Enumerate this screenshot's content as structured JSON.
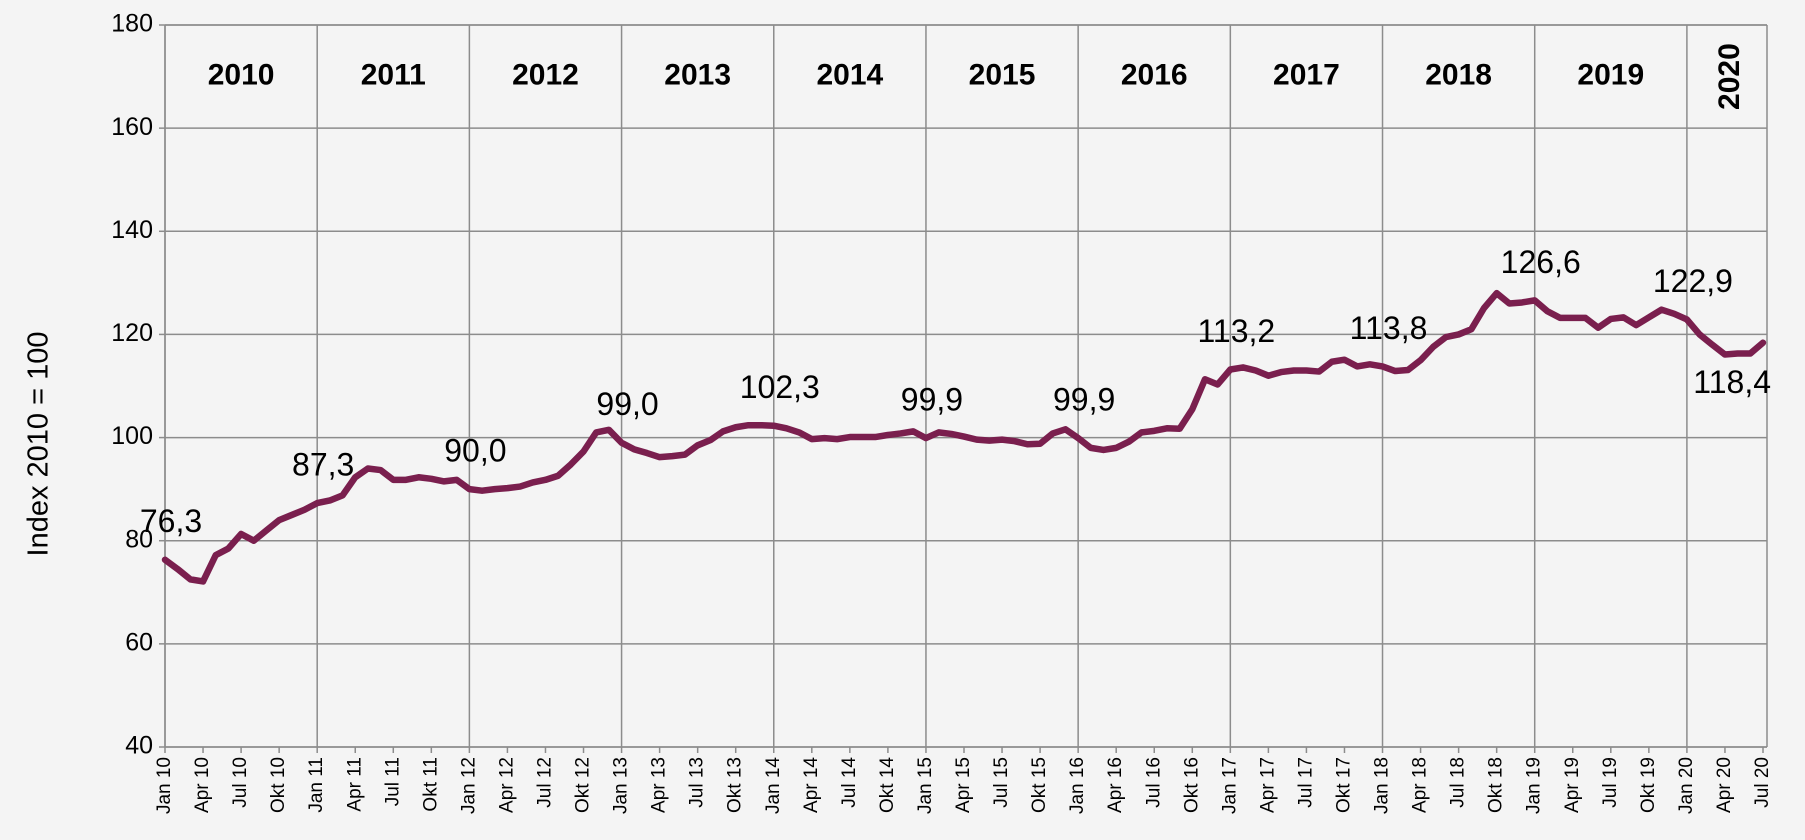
{
  "chart_data": {
    "type": "line",
    "y_label": "Index 2010 = 100",
    "year_labels": [
      "2010",
      "2011",
      "2012",
      "2013",
      "2014",
      "2015",
      "2016",
      "2017",
      "2018",
      "2019",
      "2020"
    ],
    "categories": [
      "Jan 10",
      null,
      null,
      "Apr 10",
      null,
      null,
      "Jul 10",
      null,
      null,
      "Okt 10",
      null,
      null,
      "Jan 11",
      null,
      null,
      "Apr 11",
      null,
      null,
      "Jul 11",
      null,
      null,
      "Okt 11",
      null,
      null,
      "Jan 12",
      null,
      null,
      "Apr 12",
      null,
      null,
      "Jul 12",
      null,
      null,
      "Okt 12",
      null,
      null,
      "Jan 13",
      null,
      null,
      "Apr 13",
      null,
      null,
      "Jul 13",
      null,
      null,
      "Okt 13",
      null,
      null,
      "Jan 14",
      null,
      null,
      "Apr 14",
      null,
      null,
      "Jul 14",
      null,
      null,
      "Okt 14",
      null,
      null,
      "Jan 15",
      null,
      null,
      "Apr 15",
      null,
      null,
      "Jul 15",
      null,
      null,
      "Okt 15",
      null,
      null,
      "Jan 16",
      null,
      null,
      "Apr 16",
      null,
      null,
      "Jul 16",
      null,
      null,
      "Okt 16",
      null,
      null,
      "Jan 17",
      null,
      null,
      "Apr 17",
      null,
      null,
      "Jul 17",
      null,
      null,
      "Okt 17",
      null,
      null,
      "Jan 18",
      null,
      null,
      "Apr 18",
      null,
      null,
      "Jul 18",
      null,
      null,
      "Okt 18",
      null,
      null,
      "Jan 19",
      null,
      null,
      "Apr 19",
      null,
      null,
      "Jul 19",
      null,
      null,
      "Okt 19",
      null,
      null,
      "Jan 20",
      null,
      null,
      "Apr 20",
      null,
      null,
      "Jul 20"
    ],
    "series": [
      {
        "color": "#7a1f4e",
        "values": [
          76.3,
          74.5,
          72.5,
          72.1,
          77.2,
          78.5,
          81.3,
          80.0,
          82.0,
          84.0,
          85.0,
          86.0,
          87.3,
          87.8,
          88.8,
          92.3,
          94.0,
          93.7,
          91.8,
          91.8,
          92.3,
          92.0,
          91.5,
          91.8,
          90.0,
          89.7,
          90.0,
          90.2,
          90.5,
          91.3,
          91.8,
          92.6,
          94.8,
          97.3,
          101.0,
          101.5,
          99.0,
          97.7,
          97.0,
          96.2,
          96.4,
          96.7,
          98.5,
          99.5,
          101.2,
          102.0,
          102.4,
          102.4,
          102.3,
          101.8,
          101.0,
          99.7,
          99.9,
          99.7,
          100.1,
          100.1,
          100.1,
          100.5,
          100.8,
          101.2,
          99.9,
          101.0,
          100.7,
          100.2,
          99.6,
          99.4,
          99.6,
          99.3,
          98.7,
          98.8,
          100.8,
          101.6,
          99.9,
          98.0,
          97.6,
          98.0,
          99.2,
          101.0,
          101.3,
          101.8,
          101.7,
          105.5,
          111.3,
          110.3,
          113.2,
          113.6,
          113.0,
          112.0,
          112.7,
          113.0,
          113.0,
          112.8,
          114.7,
          115.1,
          113.8,
          114.2,
          113.8,
          112.9,
          113.1,
          115.0,
          117.6,
          119.5,
          120.0,
          121.0,
          125.1,
          128.0,
          126.0,
          126.2,
          126.6,
          124.5,
          123.2,
          123.2,
          123.2,
          121.3,
          123.0,
          123.3,
          121.8,
          123.3,
          124.8,
          124.0,
          122.9,
          120.0,
          118.0,
          116.1,
          116.3,
          116.3,
          118.4
        ],
        "value_labels": [
          "76,3",
          null,
          null,
          null,
          null,
          null,
          null,
          null,
          null,
          null,
          null,
          null,
          "87,3",
          null,
          null,
          null,
          null,
          null,
          null,
          null,
          null,
          null,
          null,
          null,
          "90,0",
          null,
          null,
          null,
          null,
          null,
          null,
          null,
          null,
          null,
          null,
          null,
          "99,0",
          null,
          null,
          null,
          null,
          null,
          null,
          null,
          null,
          null,
          null,
          null,
          "102,3",
          null,
          null,
          null,
          null,
          null,
          null,
          null,
          null,
          null,
          null,
          null,
          "99,9",
          null,
          null,
          null,
          null,
          null,
          null,
          null,
          null,
          null,
          null,
          null,
          "99,9",
          null,
          null,
          null,
          null,
          null,
          null,
          null,
          null,
          null,
          null,
          null,
          "113,2",
          null,
          null,
          null,
          null,
          null,
          null,
          null,
          null,
          null,
          null,
          null,
          "113,8",
          null,
          null,
          null,
          null,
          null,
          null,
          null,
          null,
          null,
          null,
          null,
          "126,6",
          null,
          null,
          null,
          null,
          null,
          null,
          null,
          null,
          null,
          null,
          null,
          "122,9",
          null,
          null,
          null,
          null,
          null,
          "118,4"
        ]
      }
    ],
    "ylim": [
      40,
      180
    ],
    "yticks": [
      40,
      60,
      80,
      100,
      120,
      140,
      160,
      180
    ],
    "grid": true
  }
}
